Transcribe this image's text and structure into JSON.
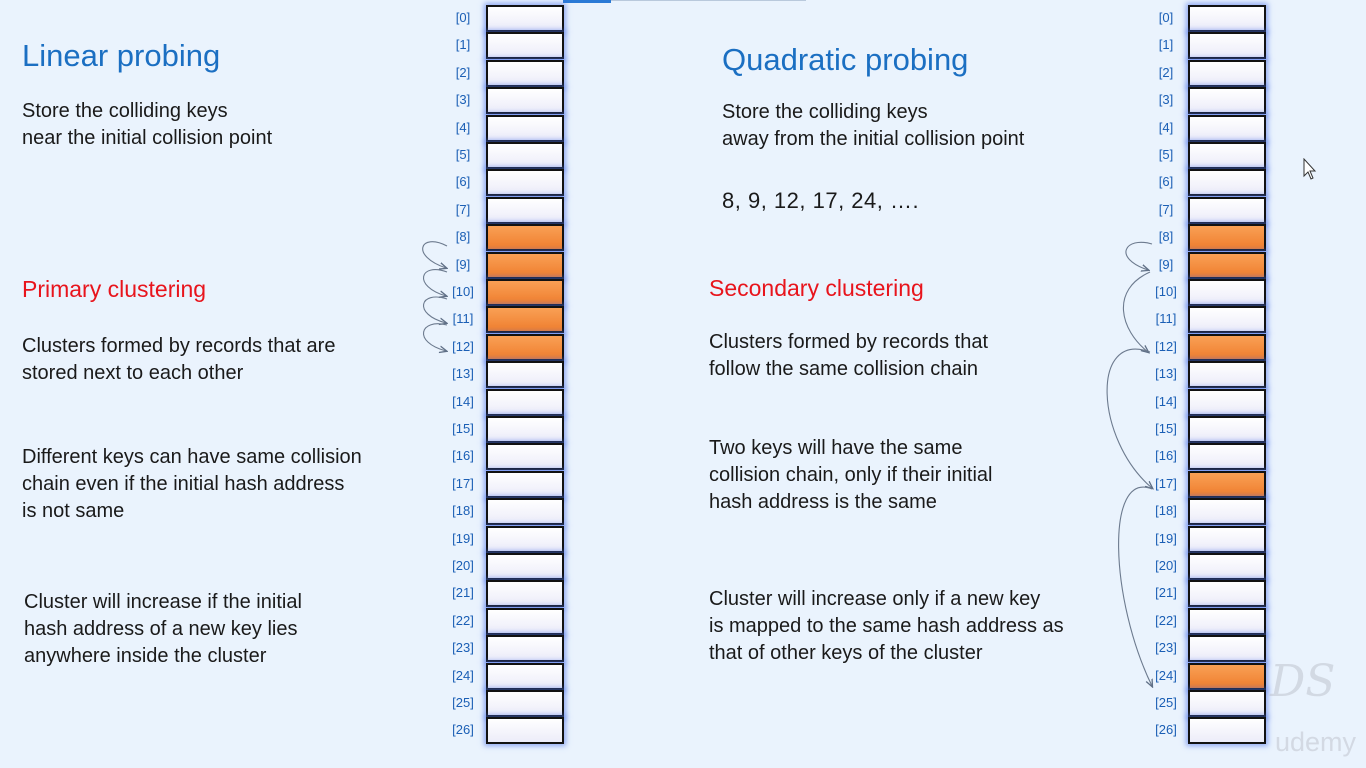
{
  "left": {
    "title": "Linear probing",
    "description": "Store the colliding keys\nnear the initial collision point",
    "clustering_title": "Primary clustering",
    "clustering_desc": "Clusters formed by records that are\nstored next to each other",
    "point_two": "Different keys can have same collision\nchain even if the initial hash address\nis not same",
    "point_three": "Cluster will increase if the initial\nhash address of a new key lies\nanywhere inside the cluster",
    "filled_slots": [
      8,
      9,
      10,
      11,
      12
    ]
  },
  "right": {
    "title": "Quadratic probing",
    "description": "Store the colliding keys\naway from the initial collision point",
    "sequence": "8,  9,  12,  17,  24, ….",
    "clustering_title": "Secondary clustering",
    "clustering_desc": "Clusters formed by records that\nfollow the same collision chain",
    "point_two": "Two keys will have the same\ncollision chain, only if their initial\nhash address is the same",
    "point_three": "Cluster will increase only if a new key\nis mapped to the same hash address as\nthat of other keys of the cluster",
    "filled_slots": [
      8,
      9,
      12,
      17,
      24
    ]
  },
  "table_indices": [
    "[0]",
    "[1]",
    "[2]",
    "[3]",
    "[4]",
    "[5]",
    "[6]",
    "[7]",
    "[8]",
    "[9]",
    "[10]",
    "[11]",
    "[12]",
    "[13]",
    "[14]",
    "[15]",
    "[16]",
    "[17]",
    "[18]",
    "[19]",
    "[20]",
    "[21]",
    "[22]",
    "[23]",
    "[24]",
    "[25]",
    "[26]"
  ],
  "watermark_logo": "DS",
  "watermark_brand": "udemy",
  "colors": {
    "heading": "#1b6fc2",
    "subheading": "#e8141c",
    "filled_cell": "#f28a3c",
    "index_label": "#1b5fb5"
  }
}
